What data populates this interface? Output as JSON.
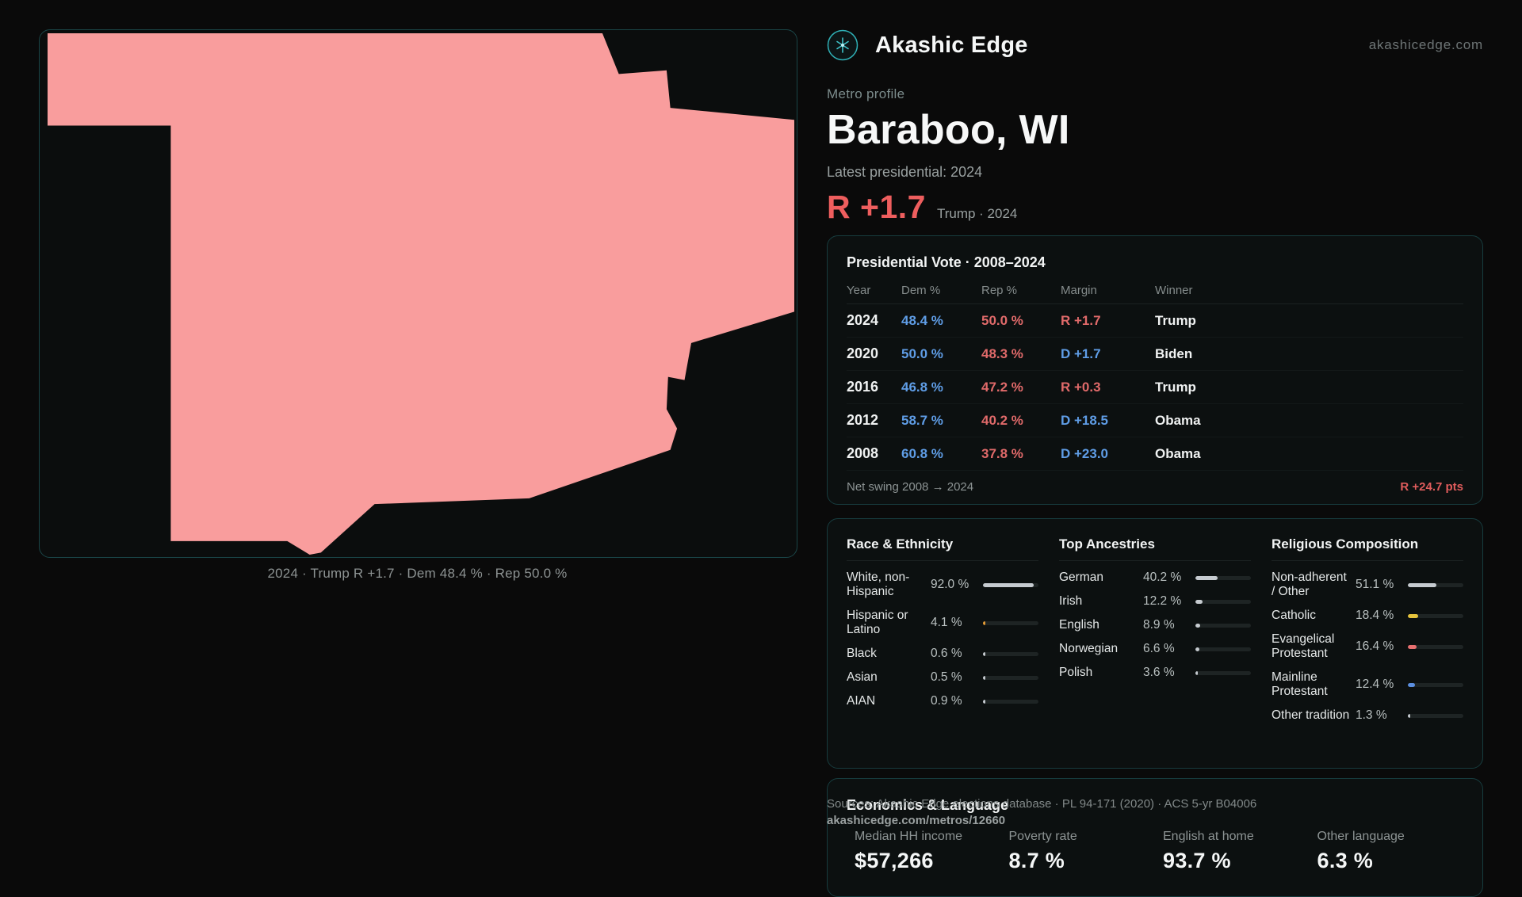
{
  "map": {
    "caption": "2024 · Trump R +1.7 · Dem 48.4 % · Rep 50.0 %",
    "shape_color": "#f99d9d"
  },
  "header": {
    "brand": "Akashic Edge",
    "site": "akashicedge.com",
    "logo_icon": "constellation-compass-icon",
    "accent_color": "#3fc4ca"
  },
  "profile": {
    "kicker": "Metro profile",
    "title": "Baraboo, WI",
    "latest_label": "Latest presidential: 2024",
    "headline_margin": "R +1.7",
    "headline_detail": "Trump · 2024",
    "margin_color": "#ee5e5e"
  },
  "vote_table": {
    "title": "Presidential Vote · 2008–2024",
    "columns": [
      "Year",
      "Dem %",
      "Rep %",
      "Margin",
      "Winner"
    ],
    "rows": [
      {
        "year": "2024",
        "dem": "48.4 %",
        "rep": "50.0 %",
        "margin": "R +1.7",
        "margin_party": "R",
        "winner": "Trump"
      },
      {
        "year": "2020",
        "dem": "50.0 %",
        "rep": "48.3 %",
        "margin": "D +1.7",
        "margin_party": "D",
        "winner": "Biden"
      },
      {
        "year": "2016",
        "dem": "46.8 %",
        "rep": "47.2 %",
        "margin": "R +0.3",
        "margin_party": "R",
        "winner": "Trump"
      },
      {
        "year": "2012",
        "dem": "58.7 %",
        "rep": "40.2 %",
        "margin": "D +18.5",
        "margin_party": "D",
        "winner": "Obama"
      },
      {
        "year": "2008",
        "dem": "60.8 %",
        "rep": "37.8 %",
        "margin": "D +23.0",
        "margin_party": "D",
        "winner": "Obama"
      }
    ],
    "footer_label": "Net swing 2008 → 2024",
    "footer_value": "R +24.7 pts",
    "dem_color": "#5f9de6",
    "rep_color": "#e06a6a"
  },
  "demographics": {
    "race": {
      "title": "Race & Ethnicity",
      "rows": [
        {
          "label": "White, non-Hispanic",
          "value": "92.0 %",
          "pct": 92.0,
          "color": "#c6cbd0"
        },
        {
          "label": "Hispanic or Latino",
          "value": "4.1 %",
          "pct": 4.1,
          "color": "#e39b35"
        },
        {
          "label": "Black",
          "value": "0.6 %",
          "pct": 0.6,
          "color": "#c6cbd0"
        },
        {
          "label": "Asian",
          "value": "0.5 %",
          "pct": 0.5,
          "color": "#c6cbd0"
        },
        {
          "label": "AIAN",
          "value": "0.9 %",
          "pct": 0.9,
          "color": "#c6cbd0"
        }
      ]
    },
    "ancestries": {
      "title": "Top Ancestries",
      "rows": [
        {
          "label": "German",
          "value": "40.2 %",
          "pct": 40.2,
          "color": "#c6cbd0"
        },
        {
          "label": "Irish",
          "value": "12.2 %",
          "pct": 12.2,
          "color": "#c6cbd0"
        },
        {
          "label": "English",
          "value": "8.9 %",
          "pct": 8.9,
          "color": "#c6cbd0"
        },
        {
          "label": "Norwegian",
          "value": "6.6 %",
          "pct": 6.6,
          "color": "#c6cbd0"
        },
        {
          "label": "Polish",
          "value": "3.6 %",
          "pct": 3.6,
          "color": "#c6cbd0"
        }
      ]
    },
    "religion": {
      "title": "Religious Composition",
      "rows": [
        {
          "label": "Non-adherent / Other",
          "value": "51.1 %",
          "pct": 51.1,
          "color": "#c6cbd0"
        },
        {
          "label": "Catholic",
          "value": "18.4 %",
          "pct": 18.4,
          "color": "#e6c33c"
        },
        {
          "label": "Evangelical Protestant",
          "value": "16.4 %",
          "pct": 16.4,
          "color": "#e87070"
        },
        {
          "label": "Mainline Protestant",
          "value": "12.4 %",
          "pct": 12.4,
          "color": "#5b8fe0"
        },
        {
          "label": "Other tradition",
          "value": "1.3 %",
          "pct": 1.3,
          "color": "#c6cbd0"
        }
      ]
    }
  },
  "economics": {
    "title": "Economics & Language",
    "stats": [
      {
        "label": "Median HH income",
        "value": "$57,266"
      },
      {
        "label": "Poverty rate",
        "value": "8.7 %"
      },
      {
        "label": "English at home",
        "value": "93.7 %"
      },
      {
        "label": "Other language",
        "value": "6.3 %"
      }
    ]
  },
  "footer": {
    "sources": "Sources: Akashic Edge elections database · PL 94-171 (2020) · ACS 5-yr B04006",
    "permalink": "akashicedge.com/metros/12660"
  }
}
